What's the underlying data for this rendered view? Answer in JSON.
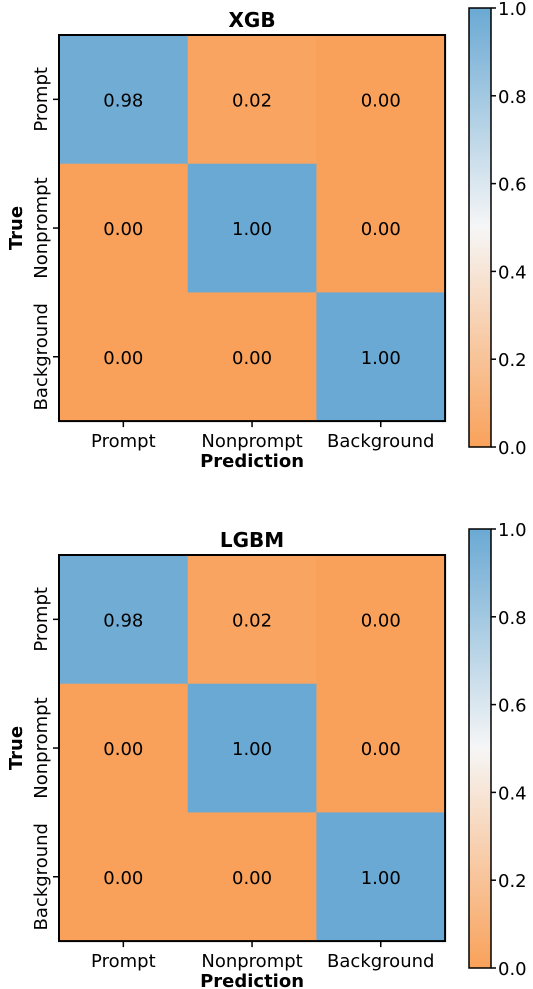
{
  "colors": {
    "low": "#F9A15A",
    "mid": "#F6F6F6",
    "high": "#6AA9D3"
  },
  "chart_data": [
    {
      "type": "heatmap",
      "title": "XGB",
      "xlabel": "Prediction",
      "ylabel": "True",
      "x_categories": [
        "Prompt",
        "Nonprompt",
        "Background"
      ],
      "y_categories": [
        "Prompt",
        "Nonprompt",
        "Background"
      ],
      "values": [
        [
          0.98,
          0.02,
          0.0
        ],
        [
          0.0,
          1.0,
          0.0
        ],
        [
          0.0,
          0.0,
          1.0
        ]
      ],
      "value_labels": [
        [
          "0.98",
          "0.02",
          "0.00"
        ],
        [
          "0.00",
          "1.00",
          "0.00"
        ],
        [
          "0.00",
          "0.00",
          "1.00"
        ]
      ],
      "colorbar": {
        "range": [
          0,
          1
        ],
        "ticks": [
          "0.0",
          "0.2",
          "0.4",
          "0.6",
          "0.8",
          "1.0"
        ]
      }
    },
    {
      "type": "heatmap",
      "title": "LGBM",
      "xlabel": "Prediction",
      "ylabel": "True",
      "x_categories": [
        "Prompt",
        "Nonprompt",
        "Background"
      ],
      "y_categories": [
        "Prompt",
        "Nonprompt",
        "Background"
      ],
      "values": [
        [
          0.98,
          0.02,
          0.0
        ],
        [
          0.0,
          1.0,
          0.0
        ],
        [
          0.0,
          0.0,
          1.0
        ]
      ],
      "value_labels": [
        [
          "0.98",
          "0.02",
          "0.00"
        ],
        [
          "0.00",
          "1.00",
          "0.00"
        ],
        [
          "0.00",
          "0.00",
          "1.00"
        ]
      ],
      "colorbar": {
        "range": [
          0,
          1
        ],
        "ticks": [
          "0.0",
          "0.2",
          "0.4",
          "0.6",
          "0.8",
          "1.0"
        ]
      }
    }
  ]
}
